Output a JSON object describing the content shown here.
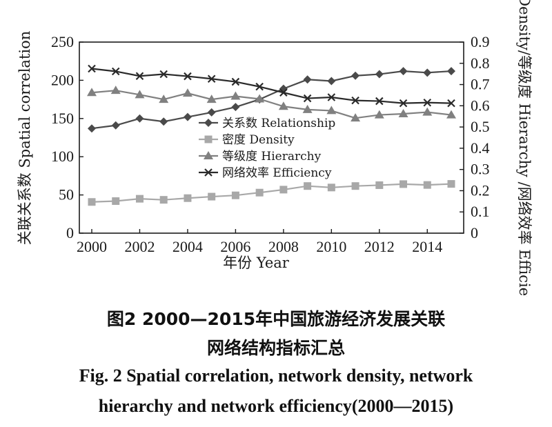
{
  "chart_data": {
    "type": "line",
    "x": [
      2000,
      2001,
      2002,
      2003,
      2004,
      2005,
      2006,
      2007,
      2008,
      2009,
      2010,
      2011,
      2012,
      2013,
      2014,
      2015
    ],
    "xlabel": "年份 Year",
    "ylabel_left": "关联关系数 Spatial correlation",
    "ylabel_right": "密度 Density/等级度 Hierarchy /网络效率 Efficiency",
    "ylim_left": [
      0,
      250
    ],
    "ylim_right": [
      0,
      0.9
    ],
    "xticks": [
      "2000",
      "2002",
      "2004",
      "2006",
      "2008",
      "2010",
      "2012",
      "2014"
    ],
    "yticks_left": [
      "0",
      "50",
      "100",
      "150",
      "200",
      "250"
    ],
    "yticks_right": [
      "0",
      "0.1",
      "0.2",
      "0.3",
      "0.4",
      "0.5",
      "0.6",
      "0.7",
      "0.8",
      "0.9"
    ],
    "grid": false,
    "legend_position": "center",
    "series": [
      {
        "name": "关系数 Relationship",
        "axis": "left",
        "marker": "diamond",
        "color": "#4a4a4a",
        "values": [
          137,
          141,
          150,
          146,
          152,
          158,
          165,
          175,
          189,
          201,
          199,
          206,
          208,
          212,
          210,
          212
        ]
      },
      {
        "name": "密度 Density",
        "axis": "right",
        "marker": "square",
        "color": "#a8a8a8",
        "values": [
          0.147,
          0.151,
          0.162,
          0.157,
          0.165,
          0.172,
          0.178,
          0.191,
          0.205,
          0.222,
          0.215,
          0.222,
          0.226,
          0.231,
          0.227,
          0.232
        ]
      },
      {
        "name": "等级度 Hierarchy",
        "axis": "right",
        "marker": "triangle",
        "color": "#808080",
        "values": [
          0.662,
          0.672,
          0.652,
          0.63,
          0.659,
          0.63,
          0.645,
          0.632,
          0.597,
          0.582,
          0.577,
          0.542,
          0.557,
          0.562,
          0.57,
          0.557
        ]
      },
      {
        "name": "网络效率 Efficiency",
        "axis": "right",
        "marker": "x",
        "color": "#2a2a2a",
        "values": [
          0.775,
          0.762,
          0.74,
          0.749,
          0.739,
          0.727,
          0.713,
          0.69,
          0.662,
          0.635,
          0.64,
          0.625,
          0.622,
          0.612,
          0.615,
          0.612
        ]
      }
    ]
  },
  "caption": {
    "cn_line1": "图2   2000—2015年中国旅游经济发展关联",
    "cn_line2": "网络结构指标汇总",
    "en_line1": "Fig. 2   Spatial correlation, network density, network",
    "en_line2": "hierarchy and network efficiency(2000—2015)"
  }
}
